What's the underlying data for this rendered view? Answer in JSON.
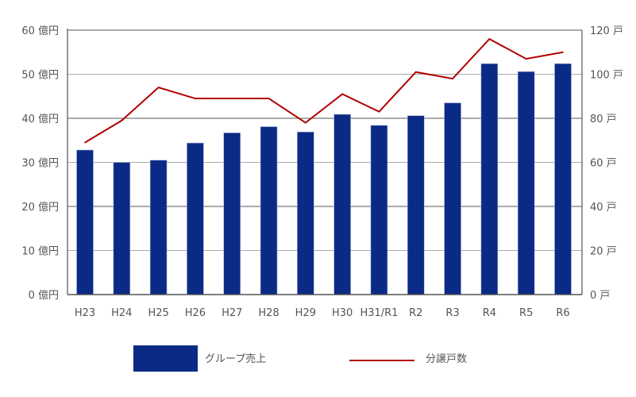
{
  "chart_data": {
    "type": "bar+line",
    "categories": [
      "H23",
      "H24",
      "H25",
      "H26",
      "H27",
      "H28",
      "H29",
      "H30",
      "H31/R1",
      "R2",
      "R3",
      "R4",
      "R5",
      "R6"
    ],
    "series": [
      {
        "name": "グループ売上",
        "type": "bar",
        "axis": "left",
        "color": "#0a2a85",
        "values": [
          32.8,
          30.0,
          30.5,
          34.4,
          36.7,
          38.1,
          36.9,
          40.9,
          38.4,
          40.6,
          43.5,
          52.4,
          50.6,
          52.4
        ]
      },
      {
        "name": "分譲戸数",
        "type": "line",
        "axis": "right",
        "color": "#b00000",
        "values": [
          69,
          79,
          94,
          89,
          89,
          89,
          78,
          91,
          83,
          101,
          98,
          116,
          107,
          110
        ]
      }
    ],
    "y_left": {
      "range": [
        0,
        60
      ],
      "ticks": [
        "0 億円",
        "10 億円",
        "20 億円",
        "30 億円",
        "40 億円",
        "50 億円",
        "60 億円"
      ]
    },
    "y_right": {
      "range": [
        0,
        120
      ],
      "ticks": [
        "0 戸",
        "20 戸",
        "40 戸",
        "60 戸",
        "80 戸",
        "100 戸",
        "120 戸"
      ]
    },
    "grid": true,
    "legend_placement": "bottom"
  }
}
